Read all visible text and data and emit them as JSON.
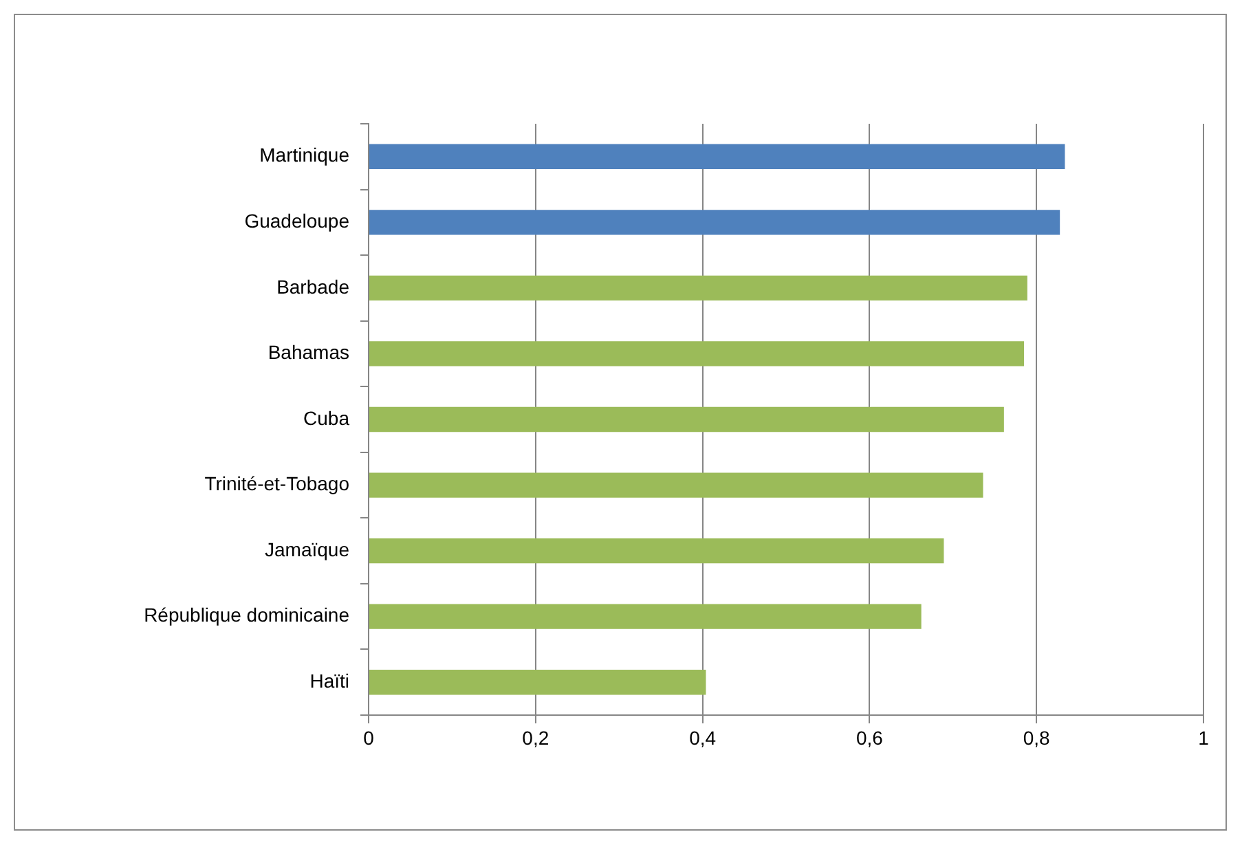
{
  "chart_data": {
    "type": "bar",
    "orientation": "horizontal",
    "categories": [
      "Martinique",
      "Guadeloupe",
      "Barbade",
      "Bahamas",
      "Cuba",
      "Trinité-et-Tobago",
      "Jamaïque",
      "République dominicaine",
      "Haïti"
    ],
    "values": [
      0.834,
      0.828,
      0.789,
      0.785,
      0.761,
      0.736,
      0.689,
      0.662,
      0.404
    ],
    "colors": [
      "#4f81bd",
      "#4f81bd",
      "#9bbb59",
      "#9bbb59",
      "#9bbb59",
      "#9bbb59",
      "#9bbb59",
      "#9bbb59",
      "#9bbb59"
    ],
    "xlim": [
      0,
      1
    ],
    "xticks": [
      0,
      {
        "value": 0.2,
        "label": "0,2"
      },
      {
        "value": 0.4,
        "label": "0,4"
      },
      {
        "value": 0.6,
        "label": "0,6"
      },
      {
        "value": 0.8,
        "label": "0,8"
      },
      1
    ],
    "grid": "x",
    "legend": false
  }
}
